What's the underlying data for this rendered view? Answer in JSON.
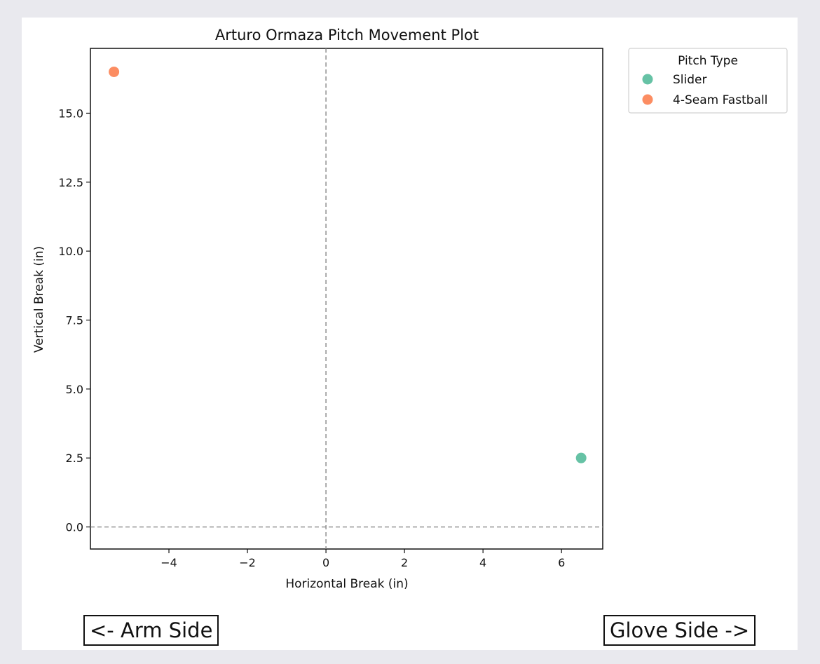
{
  "chart_data": {
    "type": "scatter",
    "title": "Arturo Ormaza Pitch Movement Plot",
    "xlabel": "Horizontal Break (in)",
    "ylabel": "Vertical Break (in)",
    "xlim": [
      -6.0,
      7.05
    ],
    "ylim": [
      -0.8,
      17.35
    ],
    "xticks": [
      -4,
      -2,
      0,
      2,
      4,
      6
    ],
    "xtick_labels": [
      "−4",
      "−2",
      "0",
      "2",
      "4",
      "6"
    ],
    "yticks": [
      0,
      2.5,
      5,
      7.5,
      10,
      12.5,
      15
    ],
    "ytick_labels": [
      "0.0",
      "2.5",
      "5.0",
      "7.5",
      "10.0",
      "12.5",
      "15.0"
    ],
    "reference_lines": {
      "x": 0,
      "y": 0,
      "style": "dashed"
    },
    "grid": false,
    "legend": {
      "title": "Pitch Type",
      "placement": "outside-top-right"
    },
    "series": [
      {
        "name": "Slider",
        "color": "#66c2a5",
        "points": [
          {
            "x": 6.5,
            "y": 2.5
          }
        ]
      },
      {
        "name": "4-Seam Fastball",
        "color": "#fc8d62",
        "points": [
          {
            "x": -5.4,
            "y": 16.5
          }
        ]
      }
    ]
  },
  "annotations": {
    "arm_side": "<- Arm Side",
    "glove_side": "Glove Side ->"
  }
}
